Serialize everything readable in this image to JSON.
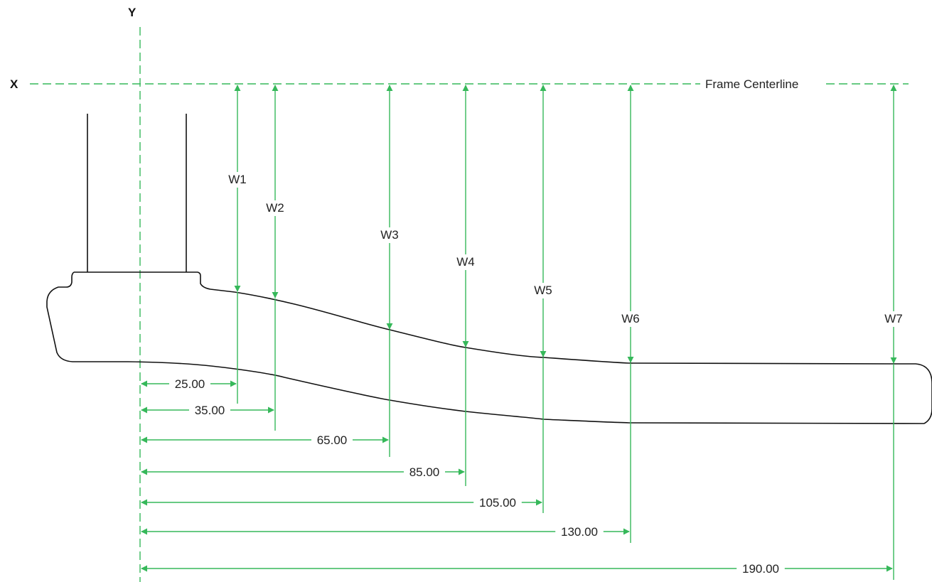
{
  "axes": {
    "x_label": "X",
    "y_label": "Y",
    "centerline_label": "Frame Centerline"
  },
  "colors": {
    "dimension": "#36b85a",
    "outline": "#111111",
    "text": "#222222"
  },
  "stations": [
    {
      "label": "W1",
      "distance": "25.00",
      "distance_value": 25
    },
    {
      "label": "W2",
      "distance": "35.00",
      "distance_value": 35
    },
    {
      "label": "W3",
      "distance": "65.00",
      "distance_value": 65
    },
    {
      "label": "W4",
      "distance": "85.00",
      "distance_value": 85
    },
    {
      "label": "W5",
      "distance": "105.00",
      "distance_value": 105
    },
    {
      "label": "W6",
      "distance": "130.00",
      "distance_value": 130
    },
    {
      "label": "W7",
      "distance": "190.00",
      "distance_value": 190
    }
  ]
}
